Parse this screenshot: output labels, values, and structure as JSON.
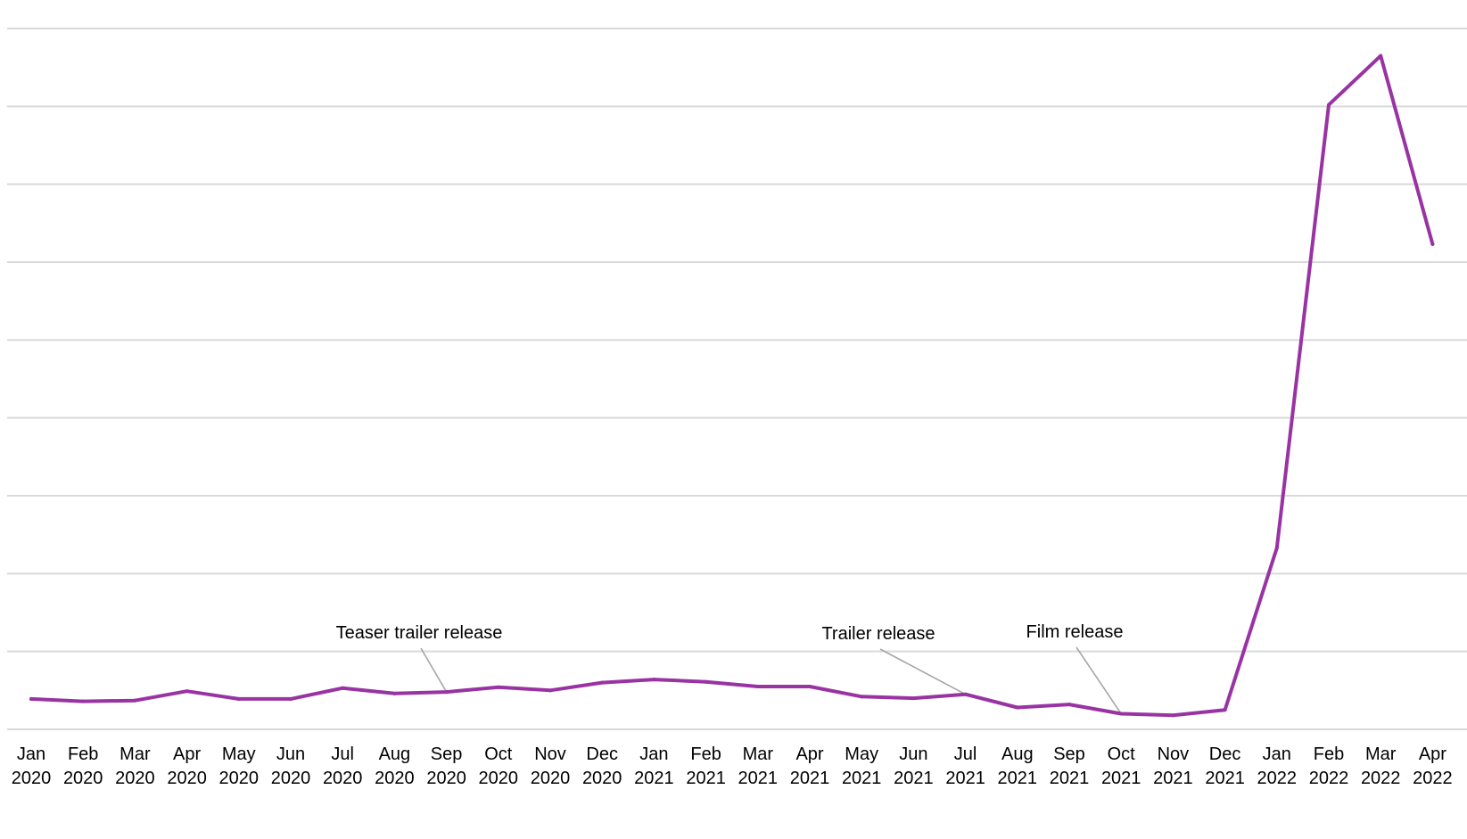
{
  "chart_data": {
    "type": "line",
    "title": "",
    "xlabel": "",
    "ylabel": "",
    "grid": true,
    "y_tick_labels_shown": false,
    "ylim": [
      0,
      9
    ],
    "y_gridlines": [
      1,
      2,
      3,
      4,
      5,
      6,
      7,
      8,
      9
    ],
    "categories": [
      [
        "Jan",
        "2020"
      ],
      [
        "Feb",
        "2020"
      ],
      [
        "Mar",
        "2020"
      ],
      [
        "Apr",
        "2020"
      ],
      [
        "May",
        "2020"
      ],
      [
        "Jun",
        "2020"
      ],
      [
        "Jul",
        "2020"
      ],
      [
        "Aug",
        "2020"
      ],
      [
        "Sep",
        "2020"
      ],
      [
        "Oct",
        "2020"
      ],
      [
        "Nov",
        "2020"
      ],
      [
        "Dec",
        "2020"
      ],
      [
        "Jan",
        "2021"
      ],
      [
        "Feb",
        "2021"
      ],
      [
        "Mar",
        "2021"
      ],
      [
        "Apr",
        "2021"
      ],
      [
        "May",
        "2021"
      ],
      [
        "Jun",
        "2021"
      ],
      [
        "Jul",
        "2021"
      ],
      [
        "Aug",
        "2021"
      ],
      [
        "Sep",
        "2021"
      ],
      [
        "Oct",
        "2021"
      ],
      [
        "Nov",
        "2021"
      ],
      [
        "Dec",
        "2021"
      ],
      [
        "Jan",
        "2022"
      ],
      [
        "Feb",
        "2022"
      ],
      [
        "Mar",
        "2022"
      ],
      [
        "Apr",
        "2022"
      ]
    ],
    "series": [
      {
        "color": "#9933a3",
        "values": [
          0.39,
          0.36,
          0.37,
          0.49,
          0.39,
          0.39,
          0.53,
          0.46,
          0.48,
          0.54,
          0.5,
          0.6,
          0.64,
          0.61,
          0.55,
          0.55,
          0.42,
          0.4,
          0.45,
          0.28,
          0.32,
          0.2,
          0.18,
          0.25,
          2.33,
          8.02,
          8.65,
          6.23
        ]
      }
    ],
    "annotations": [
      {
        "text": "Teaser trailer release",
        "category_index": 8
      },
      {
        "text": "Trailer release",
        "category_index": 18
      },
      {
        "text": "Film release",
        "category_index": 21
      }
    ]
  }
}
